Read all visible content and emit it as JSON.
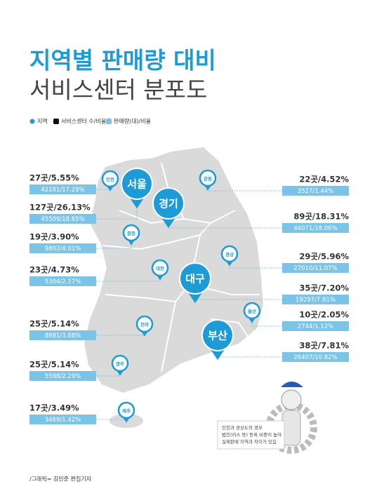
{
  "header": {
    "title": "지역별 판매량 대비",
    "subtitle": "서비스센터 분포도"
  },
  "legend": [
    "지역",
    "서비스센터 수/비율",
    "판매량(대)/비율"
  ],
  "regions": [
    {
      "name": "인천",
      "count": "27곳/5.55%",
      "sales": "42181/17.29%"
    },
    {
      "name": "서울",
      "count": "127곳/26.13%",
      "sales": "45509/18.65%"
    },
    {
      "name": "강원",
      "count": "22곳/4.52%",
      "sales": "3527/1.44%"
    },
    {
      "name": "경기",
      "count": "89곳/18.31%",
      "sales": "44071/18.06%"
    },
    {
      "name": "충청",
      "count": "19곳/3.90%",
      "sales": "9802/4.01%"
    },
    {
      "name": "경상",
      "count": "29곳/5.96%",
      "sales": "27010/11.07%"
    },
    {
      "name": "대전",
      "count": "23곳/4.73%",
      "sales": "5304/2.17%"
    },
    {
      "name": "대구",
      "count": "35곳/7.20%",
      "sales": "19297/7.91%"
    },
    {
      "name": "울산",
      "count": "10곳/2.05%",
      "sales": "2744/1.12%"
    },
    {
      "name": "전라",
      "count": "25곳/5.14%",
      "sales": "8981/3.68%"
    },
    {
      "name": "부산",
      "count": "38곳/7.81%",
      "sales": "26407/10.82%"
    },
    {
      "name": "광주",
      "count": "25곳/5.14%",
      "sales": "5598/2.29%"
    },
    {
      "name": "제주",
      "count": "17곳/3.49%",
      "sales": "3469/1.42%"
    }
  ],
  "note": [
    "인천과 경상도의 경우",
    "법인(리스 등) 등록 비중이 높아",
    "실제판매 지역과 차이가 있음."
  ],
  "credit": "/그래픽= 김민준 편집기자"
}
